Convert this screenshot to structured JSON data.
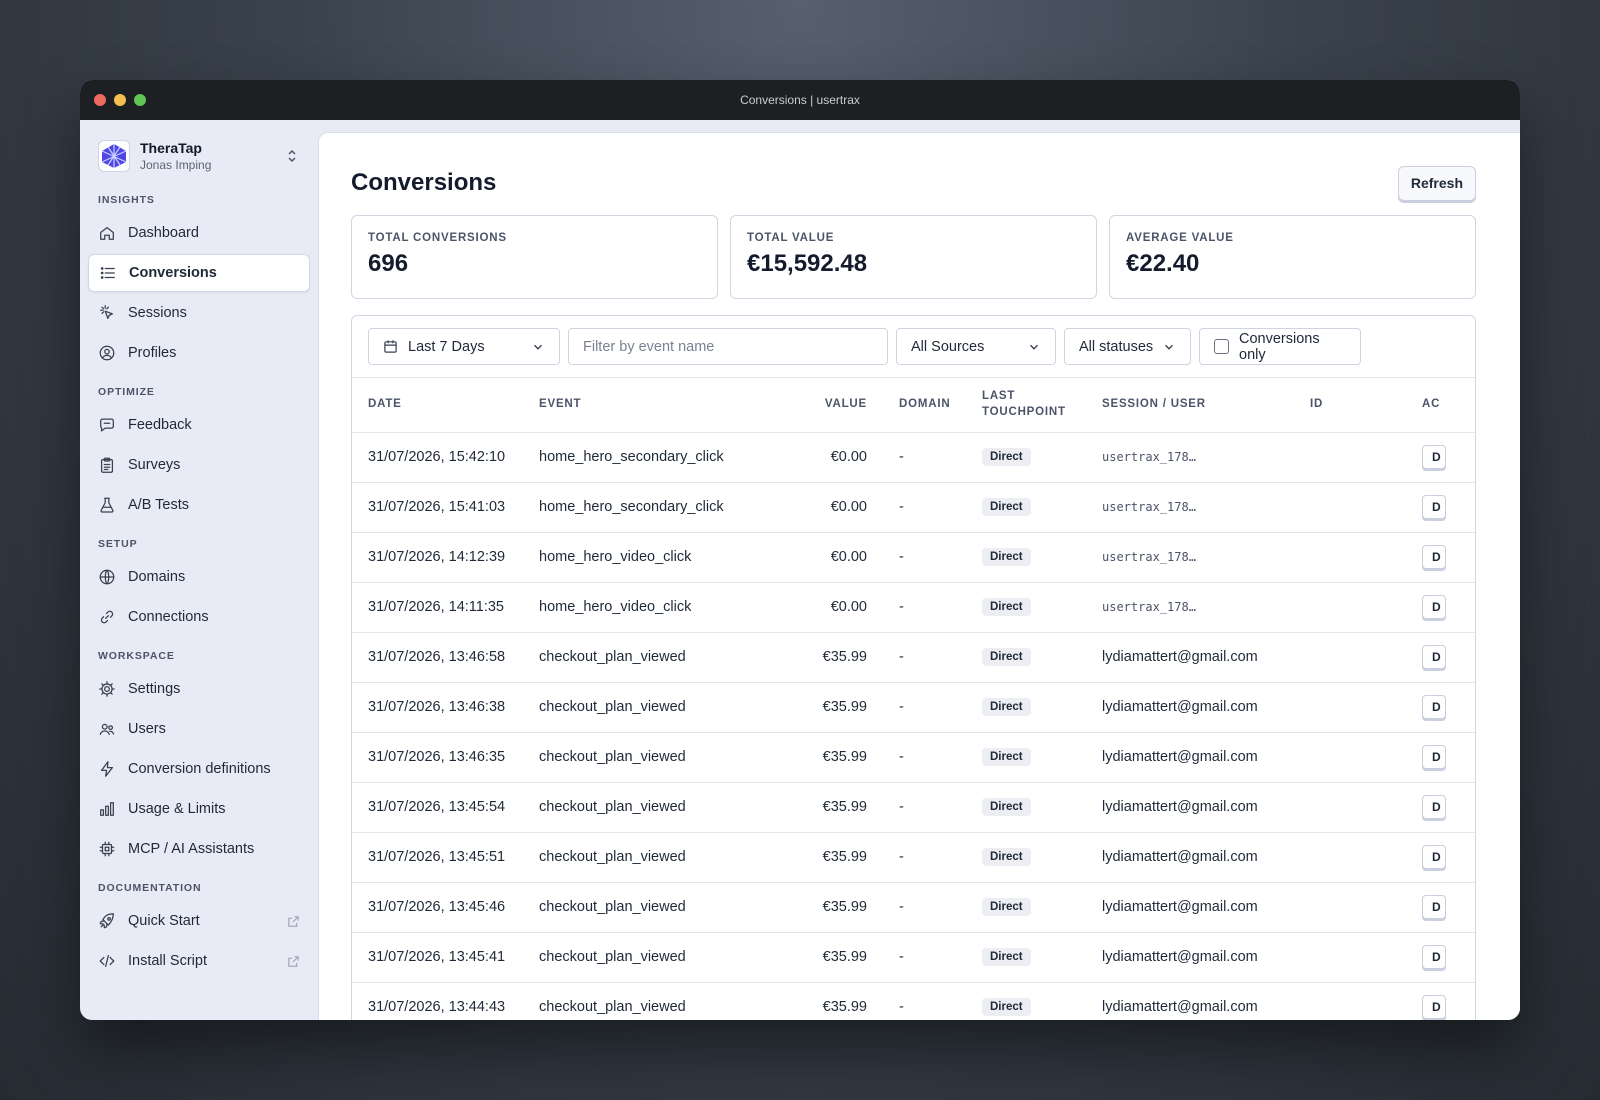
{
  "window": {
    "title": "Conversions | usertrax",
    "traffic_colors": [
      "#ed6a5e",
      "#f5bf4f",
      "#61c554"
    ]
  },
  "workspace": {
    "name": "TheraTap",
    "user": "Jonas Imping"
  },
  "sidebar": {
    "sections": [
      {
        "label": "INSIGHTS",
        "items": [
          {
            "label": "Dashboard",
            "icon": "home-icon"
          },
          {
            "label": "Conversions",
            "icon": "list-icon",
            "active": true
          },
          {
            "label": "Sessions",
            "icon": "cursor-click-icon"
          },
          {
            "label": "Profiles",
            "icon": "user-circle-icon"
          }
        ]
      },
      {
        "label": "OPTIMIZE",
        "items": [
          {
            "label": "Feedback",
            "icon": "chat-bubble-icon"
          },
          {
            "label": "Surveys",
            "icon": "clipboard-icon"
          },
          {
            "label": "A/B Tests",
            "icon": "beaker-icon"
          }
        ]
      },
      {
        "label": "SETUP",
        "items": [
          {
            "label": "Domains",
            "icon": "globe-icon"
          },
          {
            "label": "Connections",
            "icon": "link-icon"
          }
        ]
      },
      {
        "label": "WORKSPACE",
        "items": [
          {
            "label": "Settings",
            "icon": "gear-icon"
          },
          {
            "label": "Users",
            "icon": "users-icon"
          },
          {
            "label": "Conversion definitions",
            "icon": "bolt-icon"
          },
          {
            "label": "Usage & Limits",
            "icon": "bar-chart-icon"
          },
          {
            "label": "MCP / AI Assistants",
            "icon": "chip-icon"
          }
        ]
      },
      {
        "label": "DOCUMENTATION",
        "items": [
          {
            "label": "Quick Start",
            "icon": "rocket-icon",
            "external": true
          },
          {
            "label": "Install Script",
            "icon": "code-icon",
            "external": true
          }
        ]
      }
    ]
  },
  "page": {
    "title": "Conversions",
    "refresh_label": "Refresh"
  },
  "stats": [
    {
      "label": "TOTAL CONVERSIONS",
      "value": "696"
    },
    {
      "label": "TOTAL VALUE",
      "value": "€15,592.48"
    },
    {
      "label": "AVERAGE VALUE",
      "value": "€22.40"
    }
  ],
  "filters": {
    "date_range": "Last 7 Days",
    "event_placeholder": "Filter by event name",
    "sources": "All Sources",
    "statuses": "All statuses",
    "conversions_only": "Conversions only"
  },
  "table": {
    "columns": {
      "date": "DATE",
      "event": "EVENT",
      "value": "VALUE",
      "domain": "DOMAIN",
      "touch1": "LAST",
      "touch2": "TOUCHPOINT",
      "session": "SESSION / USER",
      "id": "ID",
      "actions": "AC"
    },
    "action_label": "D",
    "rows": [
      {
        "date": "31/07/2026, 15:42:10",
        "event": "home_hero_secondary_click",
        "value": "€0.00",
        "domain": "-",
        "touchpoint": "Direct",
        "session": "usertrax_178…",
        "mono": true
      },
      {
        "date": "31/07/2026, 15:41:03",
        "event": "home_hero_secondary_click",
        "value": "€0.00",
        "domain": "-",
        "touchpoint": "Direct",
        "session": "usertrax_178…",
        "mono": true
      },
      {
        "date": "31/07/2026, 14:12:39",
        "event": "home_hero_video_click",
        "value": "€0.00",
        "domain": "-",
        "touchpoint": "Direct",
        "session": "usertrax_178…",
        "mono": true
      },
      {
        "date": "31/07/2026, 14:11:35",
        "event": "home_hero_video_click",
        "value": "€0.00",
        "domain": "-",
        "touchpoint": "Direct",
        "session": "usertrax_178…",
        "mono": true
      },
      {
        "date": "31/07/2026, 13:46:58",
        "event": "checkout_plan_viewed",
        "value": "€35.99",
        "domain": "-",
        "touchpoint": "Direct",
        "session": "lydiamattert@gmail.com",
        "mono": false
      },
      {
        "date": "31/07/2026, 13:46:38",
        "event": "checkout_plan_viewed",
        "value": "€35.99",
        "domain": "-",
        "touchpoint": "Direct",
        "session": "lydiamattert@gmail.com",
        "mono": false
      },
      {
        "date": "31/07/2026, 13:46:35",
        "event": "checkout_plan_viewed",
        "value": "€35.99",
        "domain": "-",
        "touchpoint": "Direct",
        "session": "lydiamattert@gmail.com",
        "mono": false
      },
      {
        "date": "31/07/2026, 13:45:54",
        "event": "checkout_plan_viewed",
        "value": "€35.99",
        "domain": "-",
        "touchpoint": "Direct",
        "session": "lydiamattert@gmail.com",
        "mono": false
      },
      {
        "date": "31/07/2026, 13:45:51",
        "event": "checkout_plan_viewed",
        "value": "€35.99",
        "domain": "-",
        "touchpoint": "Direct",
        "session": "lydiamattert@gmail.com",
        "mono": false
      },
      {
        "date": "31/07/2026, 13:45:46",
        "event": "checkout_plan_viewed",
        "value": "€35.99",
        "domain": "-",
        "touchpoint": "Direct",
        "session": "lydiamattert@gmail.com",
        "mono": false
      },
      {
        "date": "31/07/2026, 13:45:41",
        "event": "checkout_plan_viewed",
        "value": "€35.99",
        "domain": "-",
        "touchpoint": "Direct",
        "session": "lydiamattert@gmail.com",
        "mono": false
      },
      {
        "date": "31/07/2026, 13:44:43",
        "event": "checkout_plan_viewed",
        "value": "€35.99",
        "domain": "-",
        "touchpoint": "Direct",
        "session": "lydiamattert@gmail.com",
        "mono": false
      }
    ]
  }
}
